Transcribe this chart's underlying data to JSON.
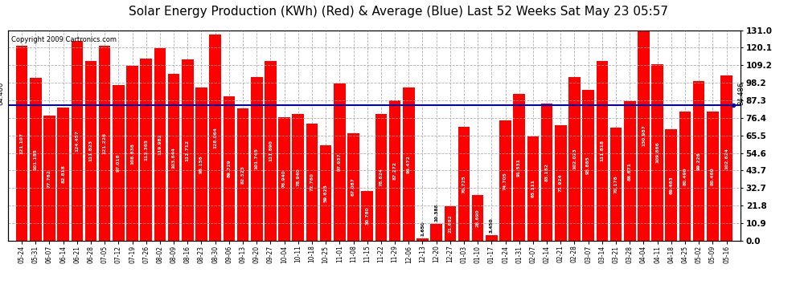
{
  "title": "Solar Energy Production (KWh) (Red) & Average (Blue) Last 52 Weeks Sat May 23 05:57",
  "copyright": "Copyright 2009 Cartronics.com",
  "average_line": 84.486,
  "bar_color": "#ff0000",
  "avg_line_color": "#0000bb",
  "background_color": "#ffffff",
  "plot_bg_color": "#ffffff",
  "grid_color": "#aaaaaa",
  "ylim": [
    0,
    131.0
  ],
  "yticks": [
    0.0,
    10.9,
    21.8,
    32.7,
    43.7,
    54.6,
    65.5,
    76.4,
    87.3,
    98.2,
    109.2,
    120.1,
    131.0
  ],
  "title_fontsize": 11,
  "values": [
    121.107,
    101.185,
    77.762,
    82.818,
    124.457,
    111.823,
    121.226,
    97.016,
    108.638,
    113.365,
    119.982,
    103.644,
    112.712,
    95.1564,
    128.064,
    89.729,
    82.323,
    101.745,
    111.89,
    76.94,
    78.94,
    72.76,
    59.625,
    97.937,
    67.087,
    30.78,
    78.824,
    87.272,
    95.472,
    1.65,
    10.388,
    21.682,
    70.725,
    28.69,
    3.45,
    74.705,
    91.531,
    65.111,
    85.182,
    71.924,
    102.023,
    93.885,
    111.818,
    70.178,
    86.671,
    130.987,
    109.866,
    69.463,
    80.49,
    99.226,
    80.46,
    102.624
  ],
  "labels": [
    "05-24",
    "05-31",
    "06-07",
    "06-14",
    "06-21",
    "06-28",
    "07-05",
    "07-12",
    "07-19",
    "07-26",
    "08-02",
    "08-09",
    "08-16",
    "08-23",
    "08-30",
    "09-06",
    "09-13",
    "09-20",
    "09-27",
    "10-04",
    "10-11",
    "10-18",
    "10-25",
    "11-01",
    "11-08",
    "11-15",
    "11-22",
    "11-29",
    "12-06",
    "12-13",
    "12-20",
    "12-27",
    "01-03",
    "01-10",
    "01-17",
    "01-24",
    "01-31",
    "02-07",
    "02-14",
    "02-21",
    "02-28",
    "03-07",
    "03-14",
    "03-21",
    "03-28",
    "04-04",
    "04-11",
    "04-18",
    "04-25",
    "05-02",
    "05-09",
    "05-16"
  ]
}
